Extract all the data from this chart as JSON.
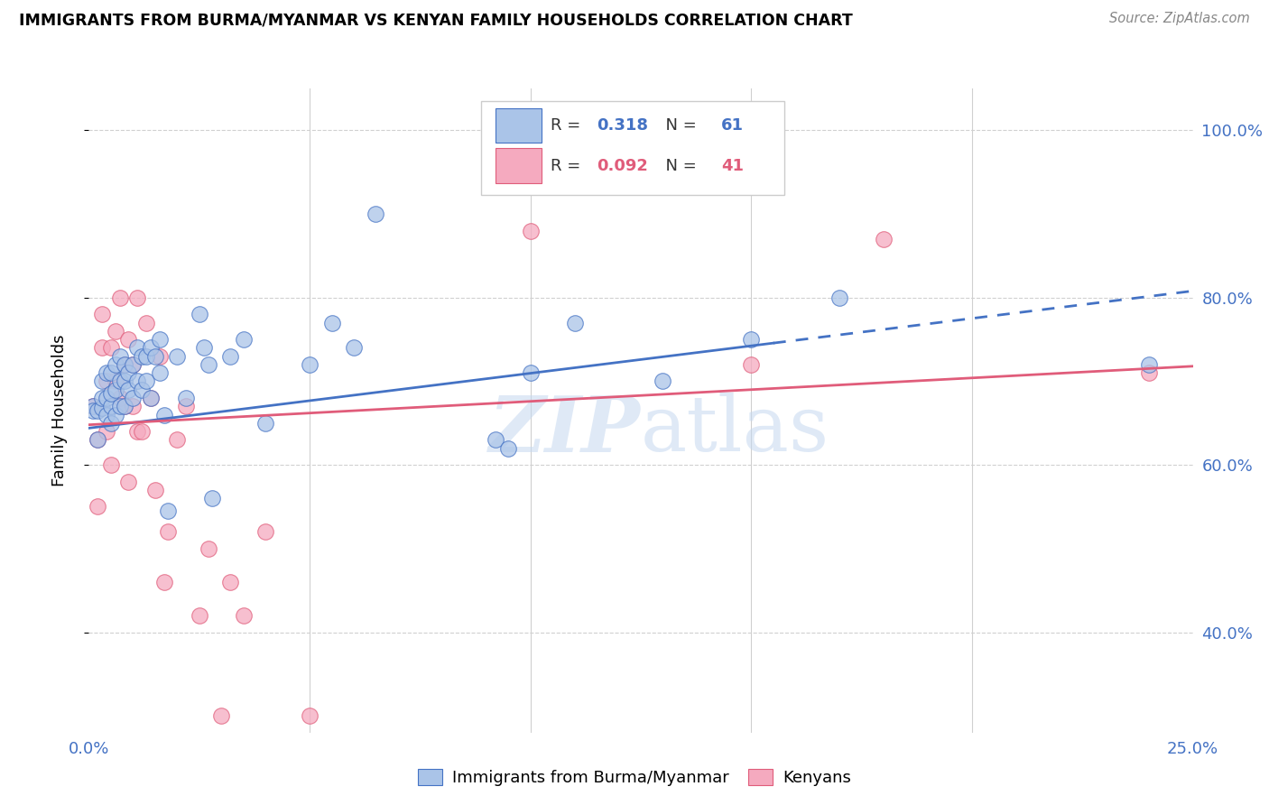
{
  "title": "IMMIGRANTS FROM BURMA/MYANMAR VS KENYAN FAMILY HOUSEHOLDS CORRELATION CHART",
  "source": "Source: ZipAtlas.com",
  "ylabel": "Family Households",
  "ytick_labels": [
    "100.0%",
    "80.0%",
    "60.0%",
    "40.0%"
  ],
  "ytick_values": [
    1.0,
    0.8,
    0.6,
    0.4
  ],
  "xlim": [
    0.0,
    0.25
  ],
  "ylim": [
    0.28,
    1.05
  ],
  "legend_blue_r": "0.318",
  "legend_blue_n": "61",
  "legend_pink_r": "0.092",
  "legend_pink_n": "41",
  "blue_scatter_x": [
    0.001,
    0.001,
    0.002,
    0.002,
    0.003,
    0.003,
    0.003,
    0.004,
    0.004,
    0.004,
    0.005,
    0.005,
    0.005,
    0.005,
    0.006,
    0.006,
    0.006,
    0.007,
    0.007,
    0.007,
    0.008,
    0.008,
    0.008,
    0.009,
    0.009,
    0.01,
    0.01,
    0.011,
    0.011,
    0.012,
    0.012,
    0.013,
    0.013,
    0.014,
    0.014,
    0.015,
    0.016,
    0.016,
    0.017,
    0.018,
    0.02,
    0.022,
    0.025,
    0.026,
    0.027,
    0.028,
    0.032,
    0.035,
    0.04,
    0.05,
    0.055,
    0.06,
    0.065,
    0.092,
    0.1,
    0.11,
    0.13,
    0.15,
    0.17,
    0.24,
    0.095
  ],
  "blue_scatter_y": [
    0.67,
    0.665,
    0.63,
    0.665,
    0.668,
    0.68,
    0.7,
    0.66,
    0.68,
    0.71,
    0.65,
    0.67,
    0.685,
    0.71,
    0.66,
    0.69,
    0.72,
    0.67,
    0.7,
    0.73,
    0.67,
    0.7,
    0.72,
    0.69,
    0.71,
    0.68,
    0.72,
    0.7,
    0.74,
    0.69,
    0.73,
    0.7,
    0.73,
    0.68,
    0.74,
    0.73,
    0.71,
    0.75,
    0.66,
    0.545,
    0.73,
    0.68,
    0.78,
    0.74,
    0.72,
    0.56,
    0.73,
    0.75,
    0.65,
    0.72,
    0.77,
    0.74,
    0.9,
    0.63,
    0.71,
    0.77,
    0.7,
    0.75,
    0.8,
    0.72,
    0.62
  ],
  "pink_scatter_x": [
    0.001,
    0.002,
    0.002,
    0.003,
    0.003,
    0.004,
    0.004,
    0.005,
    0.005,
    0.006,
    0.006,
    0.007,
    0.007,
    0.008,
    0.008,
    0.009,
    0.009,
    0.01,
    0.01,
    0.011,
    0.011,
    0.012,
    0.013,
    0.014,
    0.015,
    0.016,
    0.017,
    0.018,
    0.02,
    0.022,
    0.025,
    0.027,
    0.03,
    0.032,
    0.035,
    0.04,
    0.05,
    0.1,
    0.15,
    0.24,
    0.18
  ],
  "pink_scatter_y": [
    0.67,
    0.55,
    0.63,
    0.74,
    0.78,
    0.64,
    0.7,
    0.6,
    0.74,
    0.7,
    0.76,
    0.68,
    0.8,
    0.67,
    0.72,
    0.58,
    0.75,
    0.67,
    0.72,
    0.64,
    0.8,
    0.64,
    0.77,
    0.68,
    0.57,
    0.73,
    0.46,
    0.52,
    0.63,
    0.67,
    0.42,
    0.5,
    0.3,
    0.46,
    0.42,
    0.52,
    0.3,
    0.88,
    0.72,
    0.71,
    0.87
  ],
  "blue_color": "#aac4e8",
  "pink_color": "#f5aabf",
  "blue_line_color": "#4472c4",
  "pink_line_color": "#e05c7a",
  "grid_color": "#d0d0d0",
  "axis_label_color": "#4472c4",
  "watermark_color": "#c5d8f0",
  "blue_trend_x0": 0.0,
  "blue_trend_y0": 0.644,
  "blue_trend_x1": 0.25,
  "blue_trend_y1": 0.808,
  "pink_trend_x0": 0.0,
  "pink_trend_y0": 0.648,
  "pink_trend_x1": 0.25,
  "pink_trend_y1": 0.718,
  "blue_solid_cutoff": 0.155
}
